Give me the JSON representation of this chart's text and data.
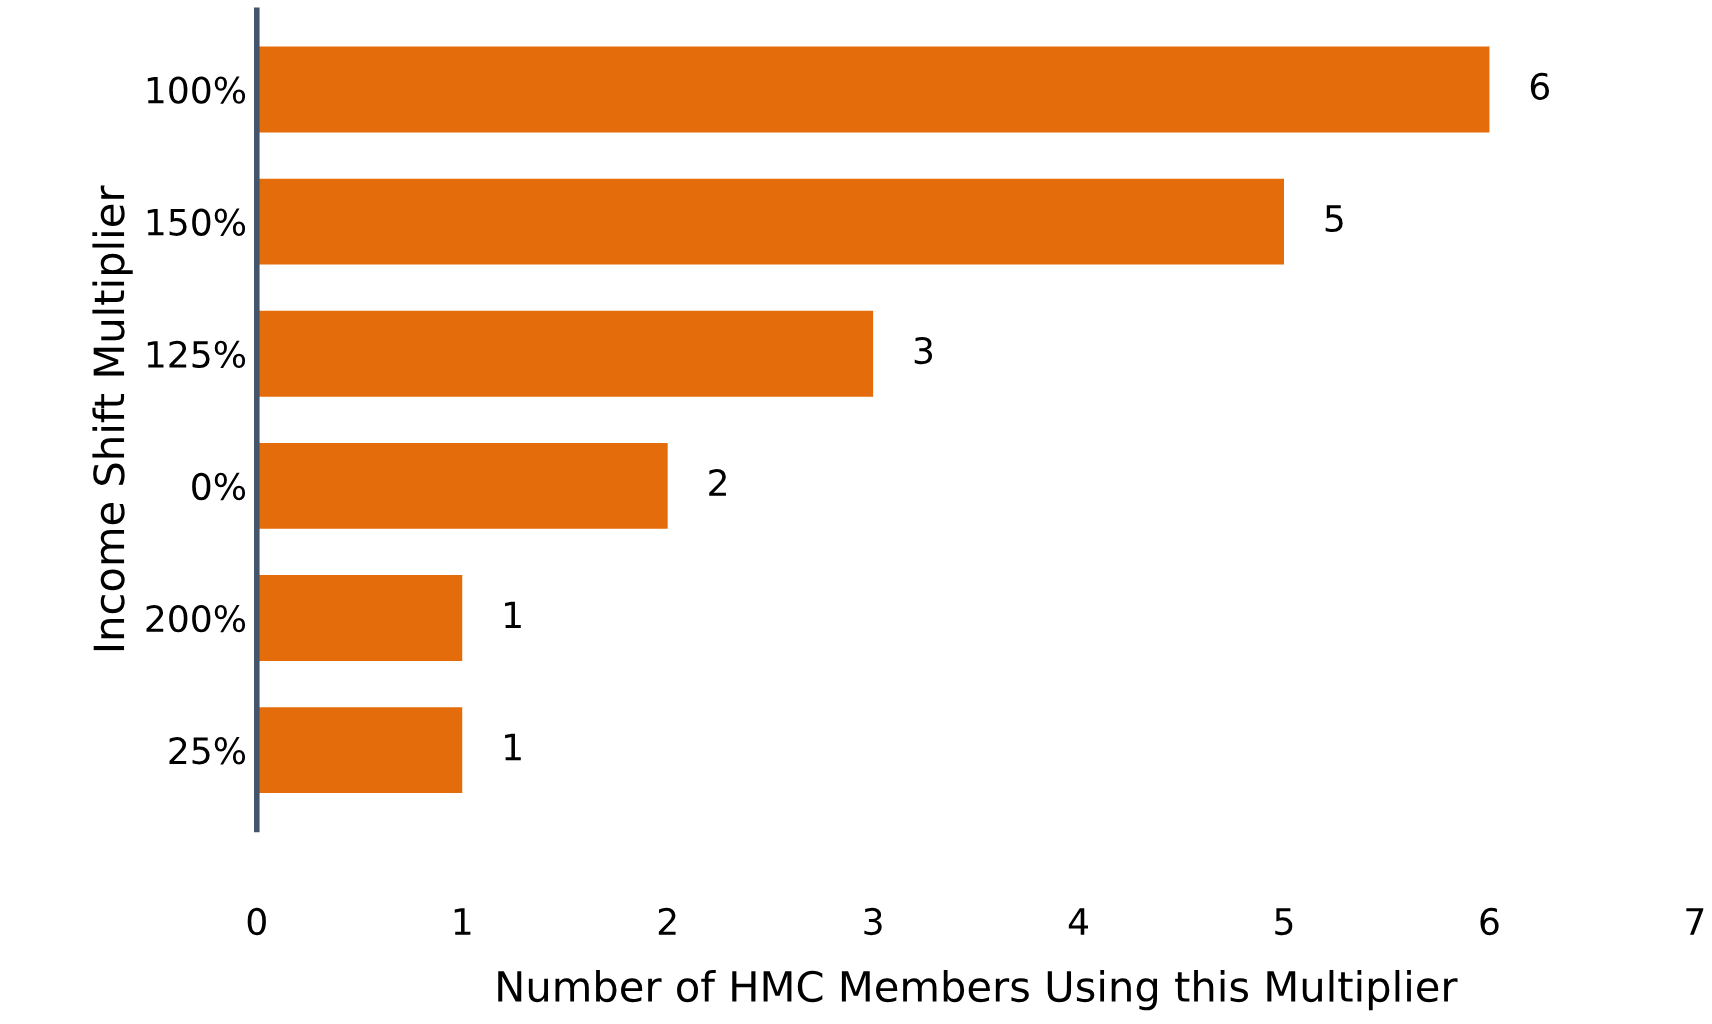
{
  "chart_data": {
    "type": "bar",
    "orientation": "horizontal",
    "xlabel": "Number of HMC Members Using this Multiplier",
    "ylabel": "Income Shift Multiplier",
    "categories": [
      "100%",
      "150%",
      "125%",
      "0%",
      "200%",
      "25%"
    ],
    "values": [
      6,
      5,
      3,
      2,
      1,
      1
    ],
    "color": "#e46c0a",
    "xlim": [
      0,
      7
    ],
    "xticks": [
      0,
      1,
      2,
      3,
      4,
      5,
      6,
      7
    ],
    "data_labels": true,
    "grid": false,
    "legend": false
  }
}
